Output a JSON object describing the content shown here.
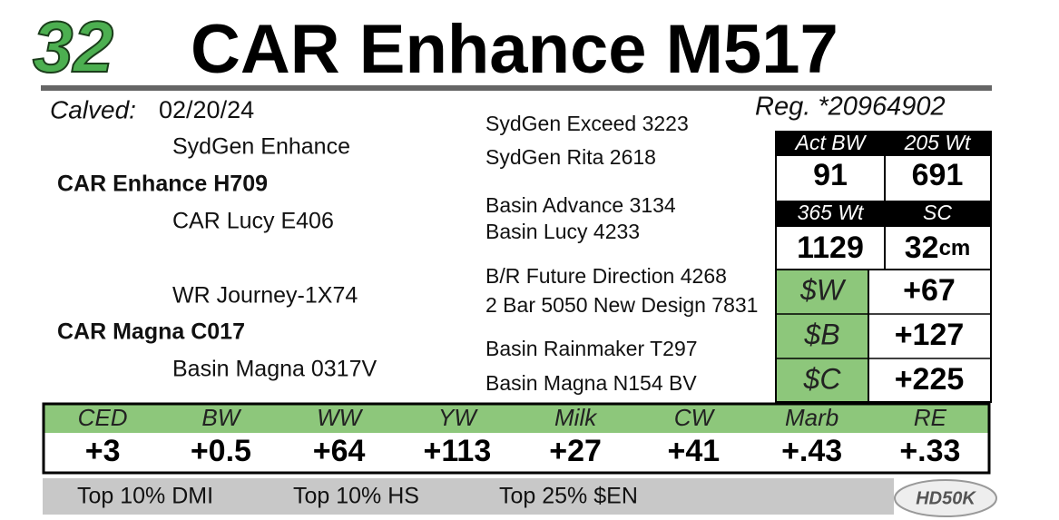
{
  "lot": "32",
  "name": "CAR Enhance M517",
  "calved_label": "Calved:",
  "calved": "02/20/24",
  "reg": "Reg. *20964902",
  "pedigree": {
    "sire": "CAR Enhance H709",
    "sire_sire": "SydGen Enhance",
    "sire_dam": "CAR Lucy E406",
    "dam": "CAR Magna C017",
    "dam_sire": "WR Journey-1X74",
    "dam_dam": "Basin Magna 0317V",
    "third_generation": [
      "SydGen Exceed 3223",
      "SydGen Rita 2618",
      "Basin Advance 3134",
      "Basin Lucy 4233",
      "B/R Future Direction 4268",
      "2 Bar 5050 New Design 7831",
      "Basin Rainmaker T297",
      "Basin Magna N154 BV"
    ]
  },
  "stats": {
    "headers": [
      "Act BW",
      "205 Wt",
      "365 Wt",
      "SC"
    ],
    "values": [
      "91",
      "691",
      "1129",
      "32"
    ],
    "sc_unit": "cm"
  },
  "indexes": {
    "labels": [
      "$W",
      "$B",
      "$C"
    ],
    "values": [
      "+67",
      "+127",
      "+225"
    ]
  },
  "epds": {
    "labels": [
      "CED",
      "BW",
      "WW",
      "YW",
      "Milk",
      "CW",
      "Marb",
      "RE"
    ],
    "values": [
      "+3",
      "+0.5",
      "+64",
      "+113",
      "+27",
      "+41",
      "+.43",
      "+.33"
    ]
  },
  "footer": [
    "Top 10% DMI",
    "Top 10% HS",
    "Top 25% $EN"
  ],
  "logo": "HD50K"
}
